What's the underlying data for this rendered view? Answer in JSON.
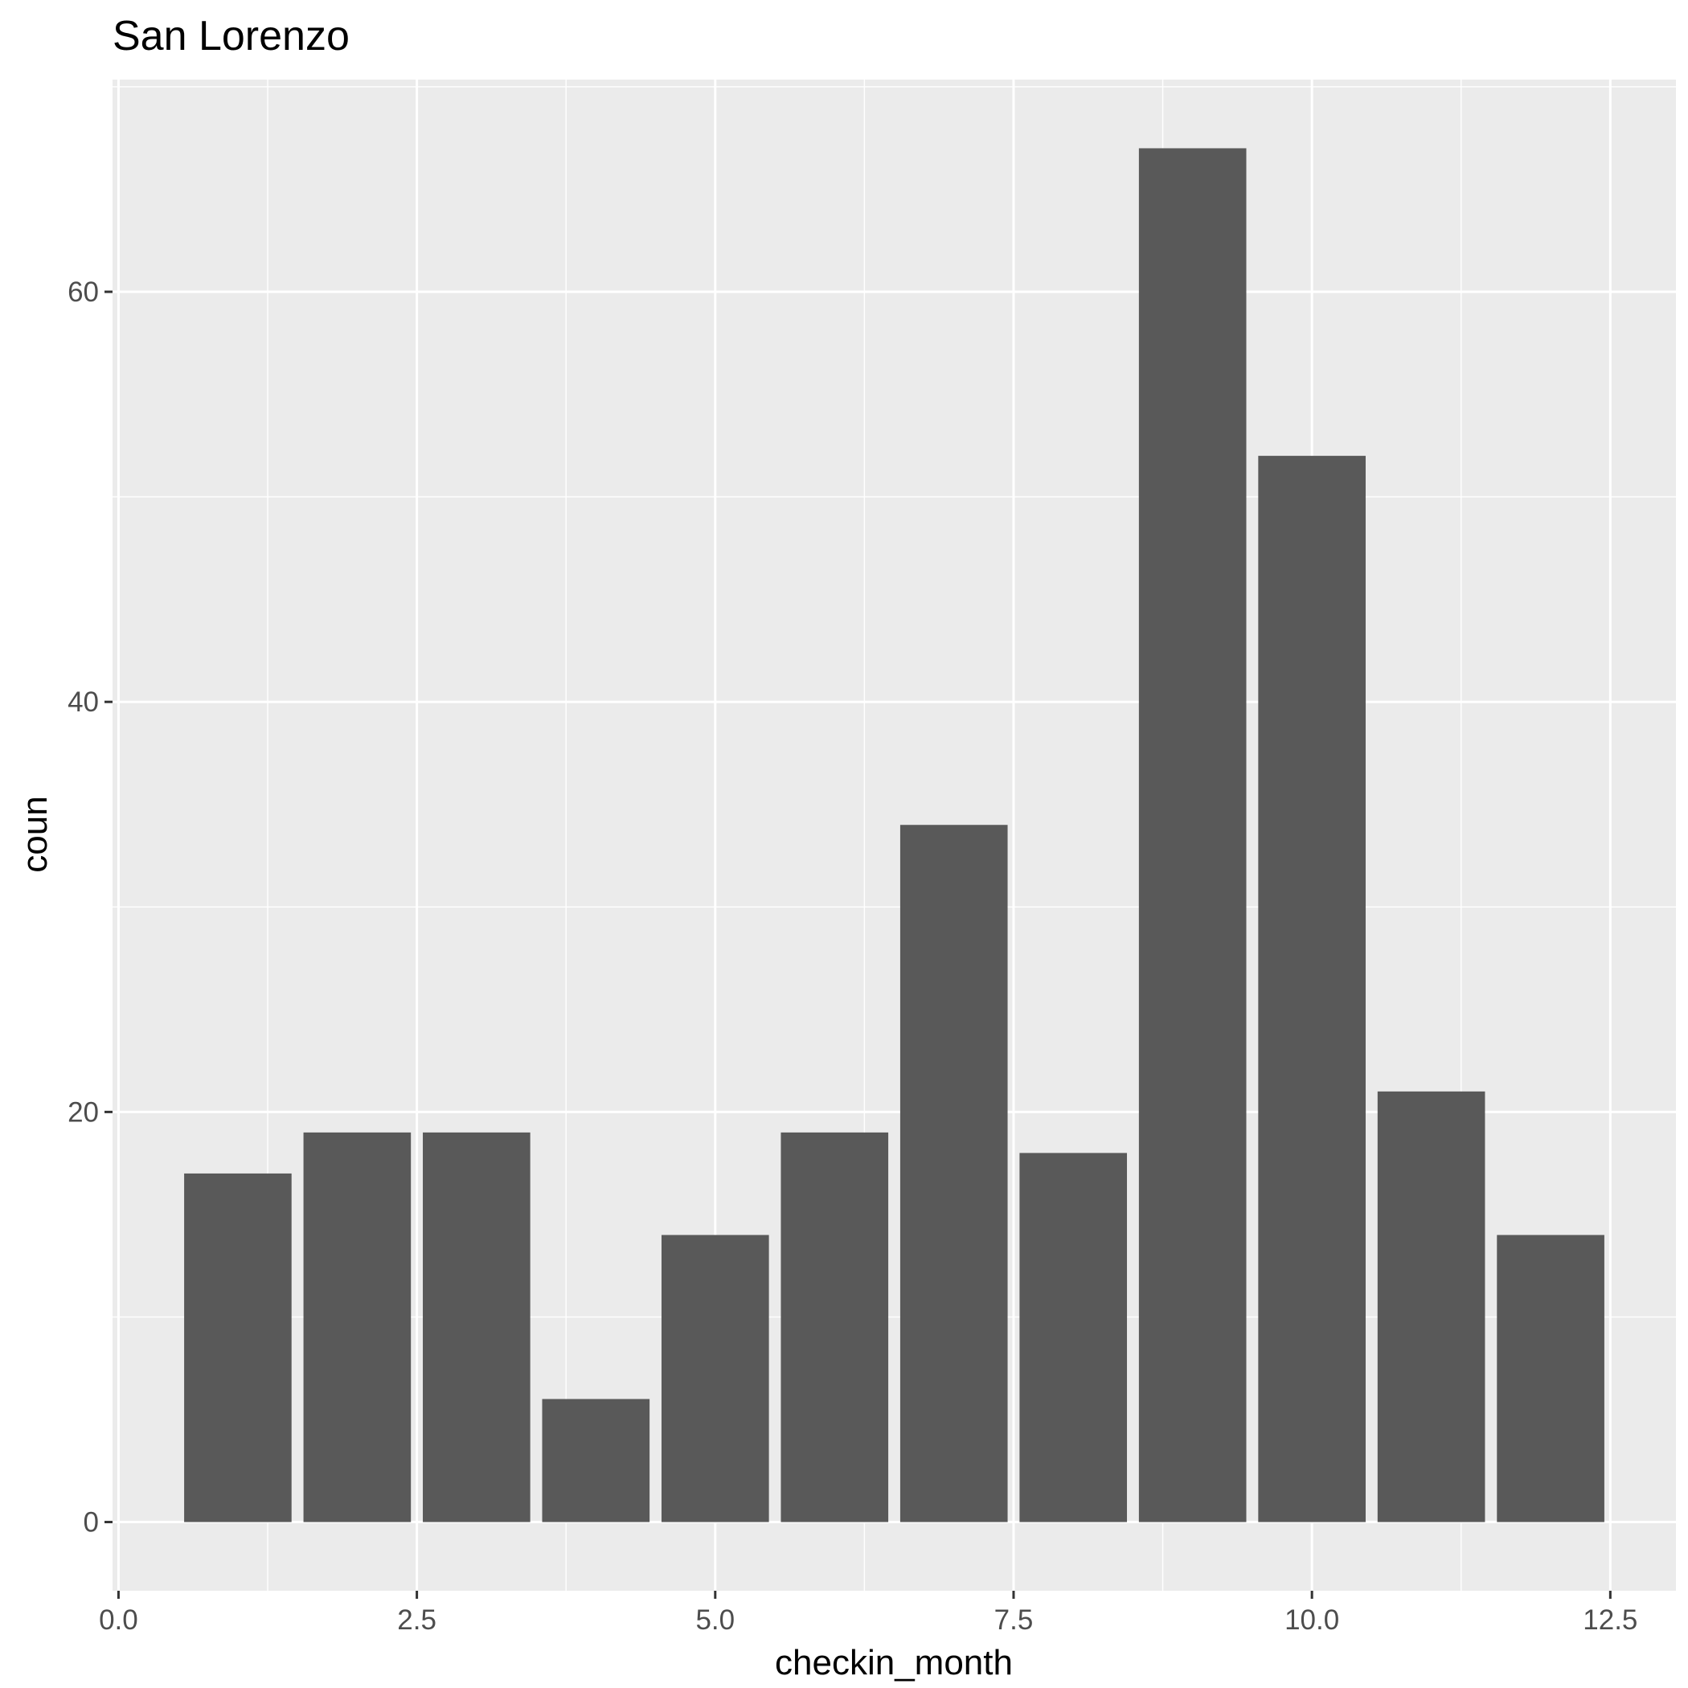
{
  "chart_data": {
    "type": "bar",
    "title": "San Lorenzo",
    "xlabel": "checkin_month",
    "ylabel": "coun",
    "x": [
      1,
      2,
      3,
      4,
      5,
      6,
      7,
      8,
      9,
      10,
      11,
      12
    ],
    "values": [
      17,
      19,
      19,
      6,
      14,
      19,
      34,
      18,
      67,
      52,
      21,
      14
    ],
    "bar_width": 0.9,
    "xlim": [
      -0.05,
      13.05
    ],
    "ylim": [
      -3.35,
      70.35
    ],
    "x_ticks": [
      {
        "value": 0,
        "label": "0.0"
      },
      {
        "value": 2.5,
        "label": "2.5"
      },
      {
        "value": 5,
        "label": "5.0"
      },
      {
        "value": 7.5,
        "label": "7.5"
      },
      {
        "value": 10,
        "label": "10.0"
      },
      {
        "value": 12.5,
        "label": "12.5"
      }
    ],
    "y_ticks": [
      {
        "value": 0,
        "label": "0"
      },
      {
        "value": 20,
        "label": "20"
      },
      {
        "value": 40,
        "label": "40"
      },
      {
        "value": 60,
        "label": "60"
      }
    ],
    "grid": true,
    "bar_color": "#595959",
    "panel_color": "#ebebeb",
    "grid_color": "#ffffff"
  }
}
